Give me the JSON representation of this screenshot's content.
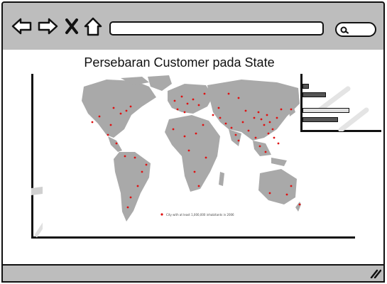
{
  "browser": {
    "back_icon": "arrow-left-icon",
    "forward_icon": "arrow-right-icon",
    "close_icon": "close-icon",
    "home_icon": "home-icon",
    "search_icon": "search-icon",
    "url": ""
  },
  "main": {
    "title": "Persebaran Customer pada State",
    "map_legend": "City with at least 1,000,000 inhabitants in 2006"
  },
  "mini_chart": {
    "bars": [
      0.08,
      0.3,
      0.6,
      0.45
    ],
    "colors": {
      "dark": "#555555",
      "light": "#e0e0e0"
    }
  },
  "footer": {
    "resize_icon": "resize-grip-icon"
  }
}
